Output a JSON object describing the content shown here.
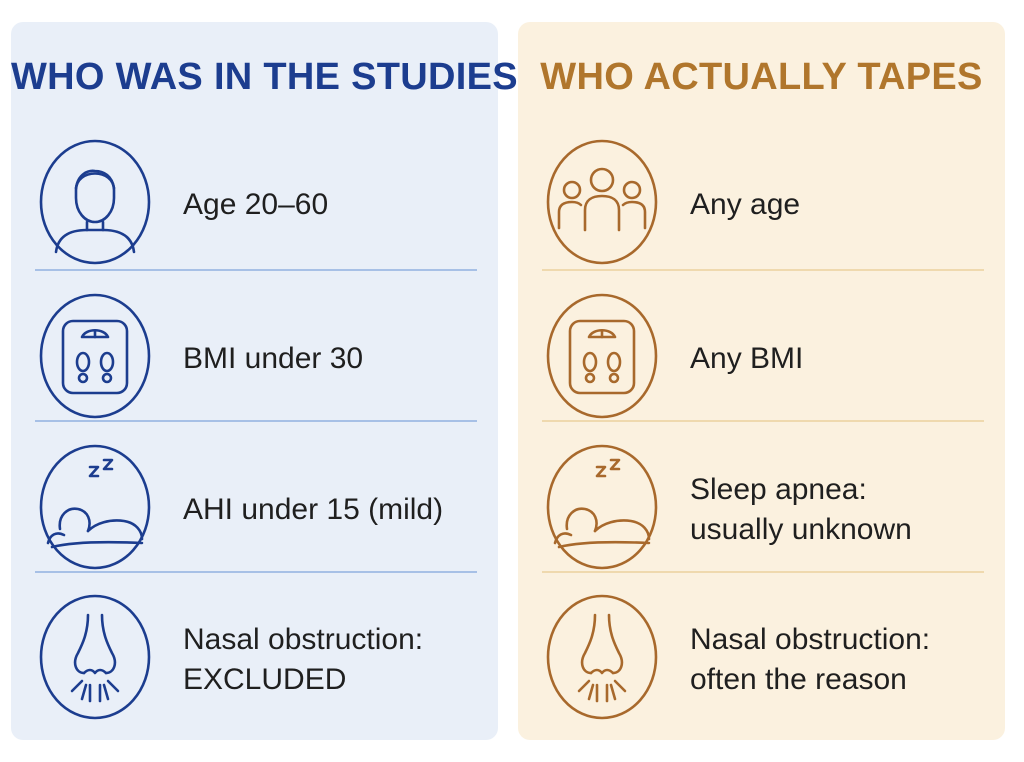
{
  "panels": [
    {
      "title": "WHO WAS IN THE STUDIES",
      "accent": "#1c3d8f",
      "background": "#e9eff8",
      "rows": [
        {
          "icon": "person-icon",
          "label": "Age 20–60"
        },
        {
          "icon": "scale-icon",
          "label": "BMI under 30"
        },
        {
          "icon": "sleeping-person-icon",
          "label": "AHI under 15 (mild)"
        },
        {
          "icon": "nose-icon",
          "label": "Nasal obstruction:\nEXCLUDED"
        }
      ]
    },
    {
      "title": "WHO ACTUALLY TAPES",
      "accent": "#b0762c",
      "background": "#fbf1df",
      "rows": [
        {
          "icon": "group-icon",
          "label": "Any age"
        },
        {
          "icon": "scale-icon",
          "label": "Any BMI"
        },
        {
          "icon": "sleeping-person-icon",
          "label": "Sleep apnea:\nusually unknown"
        },
        {
          "icon": "nose-icon",
          "label": "Nasal obstruction:\noften the reason"
        }
      ]
    }
  ]
}
